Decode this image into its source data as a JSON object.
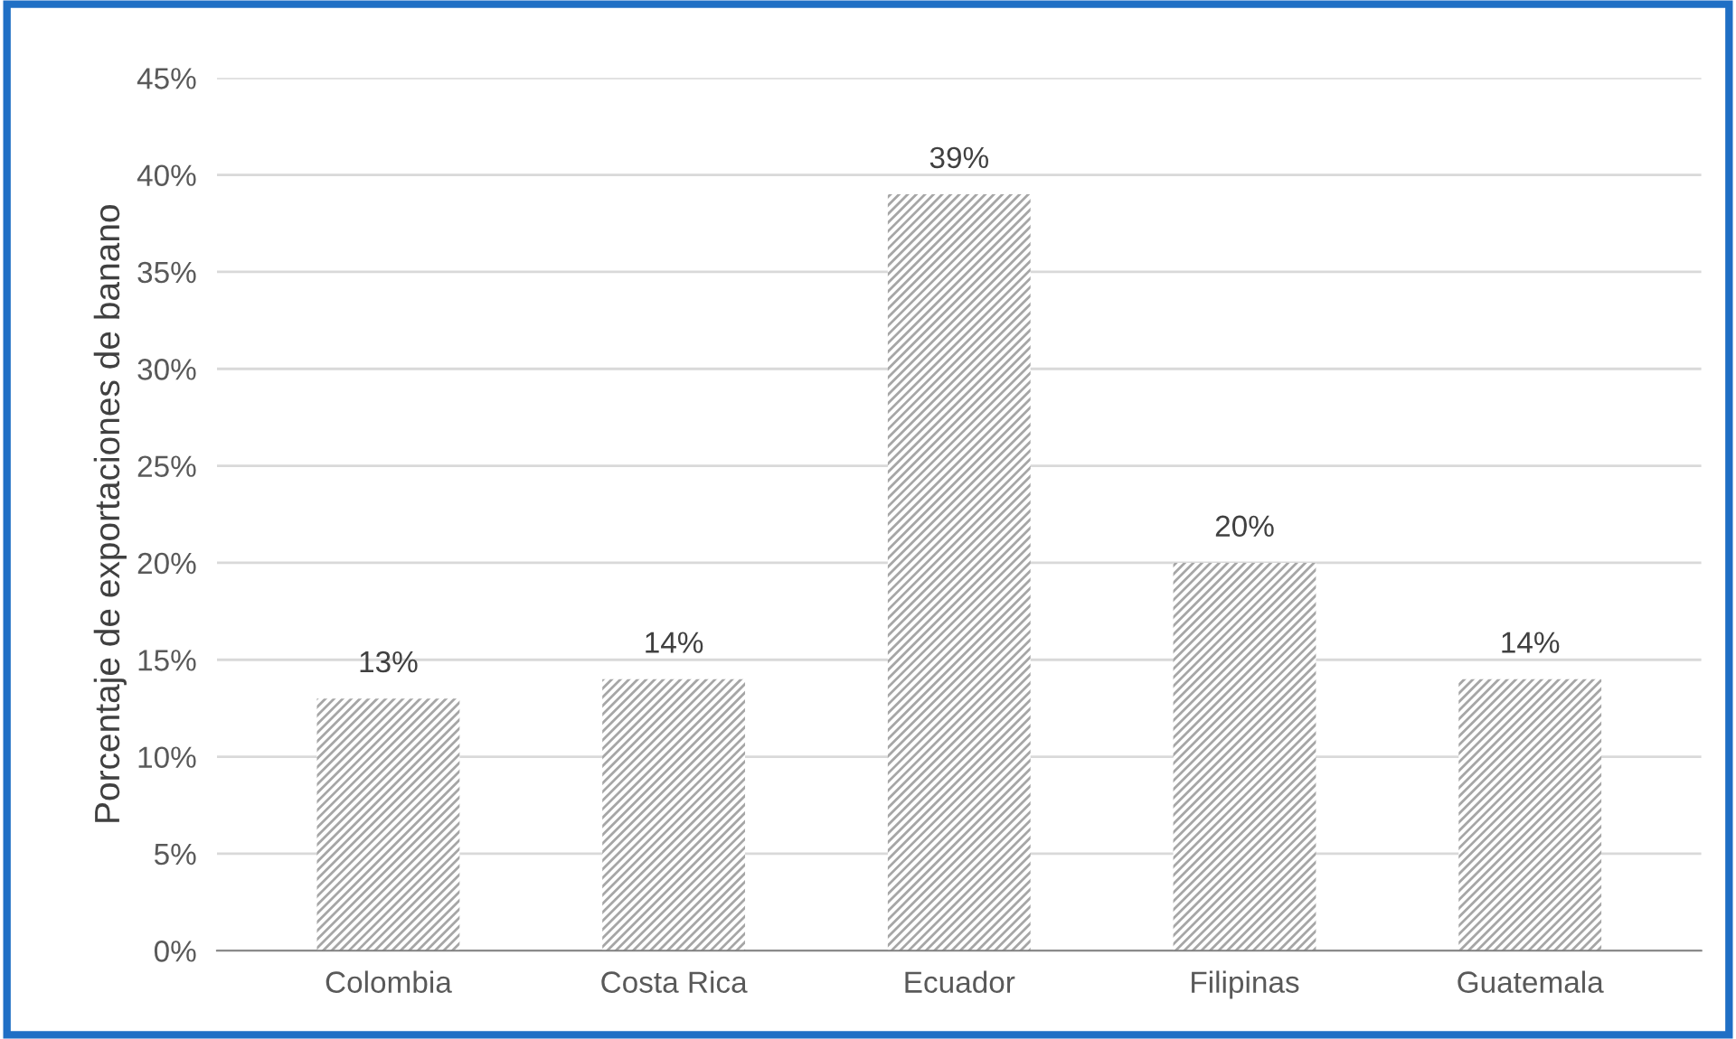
{
  "chart_data": {
    "type": "bar",
    "ylabel": "Porcentaje de exportaciones de banano",
    "categories": [
      "Colombia",
      "Costa Rica",
      "Ecuador",
      "Filipinas",
      "Guatemala"
    ],
    "values": [
      13,
      14,
      39,
      20,
      14
    ],
    "value_labels": [
      "13%",
      "14%",
      "39%",
      "20%",
      "14%"
    ],
    "color": "#a6a6a6",
    "ylim": [
      0,
      45
    ],
    "yticks": [
      {
        "value": 0,
        "label": "0%"
      },
      {
        "value": 5,
        "label": "5%"
      },
      {
        "value": 10,
        "label": "10%"
      },
      {
        "value": 15,
        "label": "15%"
      },
      {
        "value": 20,
        "label": "20%"
      },
      {
        "value": 25,
        "label": "25%"
      },
      {
        "value": 30,
        "label": "30%"
      },
      {
        "value": 35,
        "label": "35%"
      },
      {
        "value": 40,
        "label": "40%"
      },
      {
        "value": 45,
        "label": "45%"
      }
    ],
    "grid": "y"
  }
}
